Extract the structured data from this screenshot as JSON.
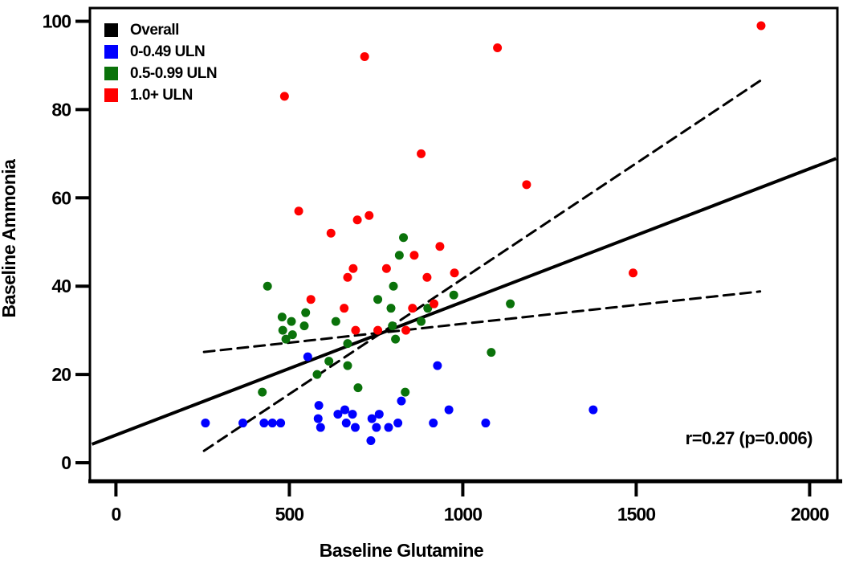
{
  "chart_data": {
    "type": "scatter",
    "title": "",
    "xlabel": "Baseline Glutamine",
    "ylabel": "Baseline Ammonia",
    "annotation": "r=0.27 (p=0.006)",
    "xlim": [
      -75,
      2080
    ],
    "ylim": [
      -4,
      103
    ],
    "x_ticks": [
      0,
      500,
      1000,
      1500,
      2000
    ],
    "y_ticks": [
      0,
      20,
      40,
      60,
      80,
      100
    ],
    "grid": false,
    "legend_position": "top-left",
    "legend": [
      {
        "label": "Overall",
        "color": "#000000"
      },
      {
        "label": "0-0.49 ULN",
        "color": "#0000FF"
      },
      {
        "label": "0.5-0.99 ULN",
        "color": "#0A720A"
      },
      {
        "label": "1.0+ ULN",
        "color": "#FF0000"
      }
    ],
    "regression_line": {
      "name": "Overall",
      "color": "#000000",
      "width": 4,
      "x1": -69,
      "y1": 4.2,
      "x2": 2076,
      "y2": 68.9
    },
    "ci_lines": [
      {
        "name": "upper-ci",
        "color": "#000000",
        "width": 3,
        "dash": "13 8",
        "x1": 254,
        "y1": 2.7,
        "x2": 1857,
        "y2": 86.5
      },
      {
        "name": "lower-ci",
        "color": "#000000",
        "width": 3,
        "dash": "13 8",
        "x1": 254,
        "y1": 25.1,
        "x2": 1857,
        "y2": 38.8
      }
    ],
    "series": [
      {
        "name": "0-0.49 ULN",
        "id": "blue",
        "color": "#0000FF",
        "points": [
          [
            258,
            9
          ],
          [
            366,
            9
          ],
          [
            427,
            9
          ],
          [
            451,
            9
          ],
          [
            475,
            9
          ],
          [
            553,
            24
          ],
          [
            583,
            10
          ],
          [
            585,
            13
          ],
          [
            590,
            8
          ],
          [
            640,
            11
          ],
          [
            660,
            12
          ],
          [
            664,
            9
          ],
          [
            682,
            11
          ],
          [
            690,
            8
          ],
          [
            735,
            5
          ],
          [
            738,
            10
          ],
          [
            751,
            8
          ],
          [
            759,
            11
          ],
          [
            786,
            8
          ],
          [
            813,
            9
          ],
          [
            823,
            14
          ],
          [
            915,
            9
          ],
          [
            927,
            22
          ],
          [
            960,
            12
          ],
          [
            1066,
            9
          ],
          [
            1376,
            12
          ]
        ]
      },
      {
        "name": "0.5-0.99 ULN",
        "id": "green",
        "color": "#0A720A",
        "points": [
          [
            422,
            16
          ],
          [
            437,
            40
          ],
          [
            479,
            33
          ],
          [
            481,
            30
          ],
          [
            490,
            28
          ],
          [
            506,
            32
          ],
          [
            509,
            29
          ],
          [
            543,
            31
          ],
          [
            547,
            34
          ],
          [
            580,
            20
          ],
          [
            614,
            23
          ],
          [
            634,
            32
          ],
          [
            668,
            27
          ],
          [
            668,
            22
          ],
          [
            698,
            17
          ],
          [
            755,
            37
          ],
          [
            793,
            35
          ],
          [
            797,
            31
          ],
          [
            800,
            40
          ],
          [
            806,
            28
          ],
          [
            817,
            47
          ],
          [
            829,
            51
          ],
          [
            834,
            16
          ],
          [
            880,
            32
          ],
          [
            899,
            35
          ],
          [
            974,
            38
          ],
          [
            1082,
            25
          ],
          [
            1137,
            36
          ]
        ]
      },
      {
        "name": "1.0+ ULN",
        "id": "red",
        "color": "#FF0000",
        "points": [
          [
            486,
            83
          ],
          [
            527,
            57
          ],
          [
            562,
            37
          ],
          [
            620,
            52
          ],
          [
            658,
            35
          ],
          [
            668,
            42
          ],
          [
            684,
            44
          ],
          [
            691,
            30
          ],
          [
            696,
            55
          ],
          [
            717,
            92
          ],
          [
            730,
            56
          ],
          [
            755,
            30
          ],
          [
            780,
            44
          ],
          [
            836,
            30
          ],
          [
            855,
            35
          ],
          [
            860,
            47
          ],
          [
            880,
            70
          ],
          [
            897,
            42
          ],
          [
            917,
            36
          ],
          [
            934,
            49
          ],
          [
            976,
            43
          ],
          [
            1100,
            94
          ],
          [
            1184,
            63
          ],
          [
            1491,
            43
          ],
          [
            1860,
            99
          ]
        ]
      }
    ]
  }
}
